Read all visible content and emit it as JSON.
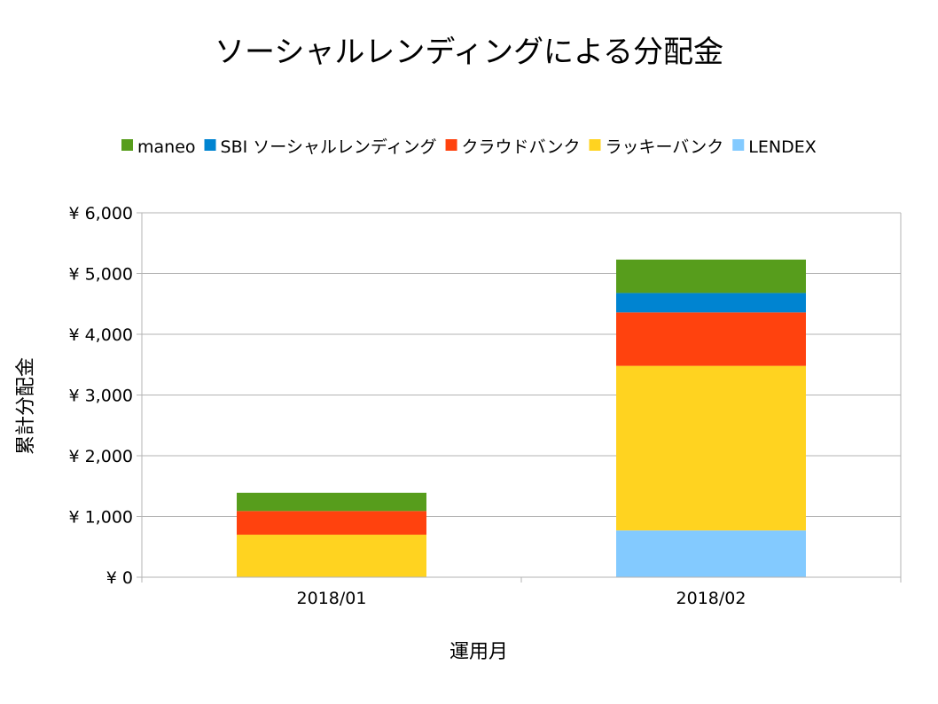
{
  "chart_data": {
    "type": "bar",
    "stacked": true,
    "title": "ソーシャルレンディングによる分配金",
    "xlabel": "運用月",
    "ylabel": "累計分配金",
    "categories": [
      "2018/01",
      "2018/02"
    ],
    "ylim": [
      0,
      6000
    ],
    "yticks": [
      0,
      1000,
      2000,
      3000,
      4000,
      5000,
      6000
    ],
    "ytick_labels": [
      "¥ 0",
      "¥ 1,000",
      "¥ 2,000",
      "¥ 3,000",
      "¥ 4,000",
      "¥ 5,000",
      "¥ 6,000"
    ],
    "grid": true,
    "legend_position": "top",
    "series": [
      {
        "name": "maneo",
        "color": "#579d1c",
        "values": [
          300,
          550
        ]
      },
      {
        "name": "SBI ソーシャルレンディング",
        "color": "#0084d1",
        "values": [
          0,
          320
        ]
      },
      {
        "name": "クラウドバンク",
        "color": "#ff420e",
        "values": [
          390,
          880
        ]
      },
      {
        "name": "ラッキーバンク",
        "color": "#ffd320",
        "values": [
          700,
          2710
        ]
      },
      {
        "name": "LENDEX",
        "color": "#83caff",
        "values": [
          0,
          770
        ]
      }
    ]
  }
}
